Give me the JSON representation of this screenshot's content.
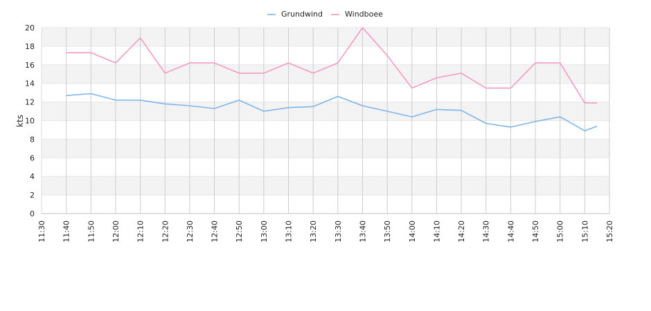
{
  "chart_data": {
    "type": "line",
    "title": "",
    "xlabel": "",
    "ylabel": "kts",
    "ylim": [
      0,
      20
    ],
    "yticks": [
      "0",
      "2",
      "4",
      "6",
      "8",
      "10",
      "12",
      "14",
      "16",
      "18",
      "20"
    ],
    "xticks": [
      "11:30",
      "11:40",
      "11:50",
      "12:00",
      "12:10",
      "12:20",
      "12:30",
      "12:40",
      "12:50",
      "13:00",
      "13:10",
      "13:20",
      "13:30",
      "13:40",
      "13:50",
      "14:00",
      "14:10",
      "14:20",
      "14:30",
      "14:40",
      "14:50",
      "15:00",
      "15:10",
      "15:20"
    ],
    "x": [
      "11:40",
      "11:50",
      "12:00",
      "12:10",
      "12:20",
      "12:30",
      "12:40",
      "12:50",
      "13:00",
      "13:10",
      "13:20",
      "13:30",
      "13:40",
      "13:50",
      "14:00",
      "14:10",
      "14:20",
      "14:30",
      "14:40",
      "14:50",
      "15:00",
      "15:10",
      "15:15"
    ],
    "grid": true,
    "legend_position": "top-center",
    "series": [
      {
        "name": "Grundwind",
        "color": "#7cb5ec",
        "values": [
          12.7,
          12.9,
          12.2,
          12.2,
          11.8,
          11.6,
          11.3,
          12.2,
          11.0,
          11.4,
          11.5,
          12.6,
          11.6,
          11.0,
          10.4,
          11.2,
          11.1,
          9.7,
          9.3,
          9.9,
          10.4,
          8.9,
          9.4
        ]
      },
      {
        "name": "Windboee",
        "color": "#f49ac2",
        "values": [
          17.3,
          17.3,
          16.2,
          18.9,
          15.1,
          16.2,
          16.2,
          15.1,
          15.1,
          16.2,
          15.1,
          16.2,
          20.0,
          17.0,
          13.5,
          14.6,
          15.1,
          13.5,
          13.5,
          16.2,
          16.2,
          11.9,
          11.9
        ]
      }
    ]
  }
}
